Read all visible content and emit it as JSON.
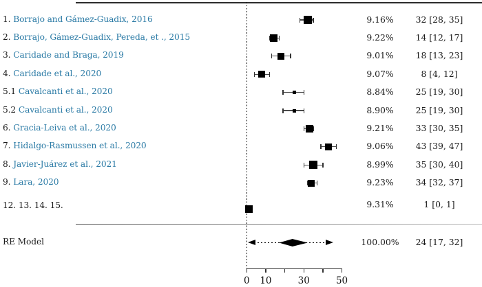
{
  "chart_data": {
    "type": "forest",
    "title": "",
    "description": "Forest plot of study prevalence estimates with 95% CI, weights, and random-effects summary",
    "columns": {
      "weight_header": "",
      "estimate_header": ""
    },
    "rows": [
      {
        "num": "1.",
        "name": "Borrajo and Gámez-Guadix, 2016",
        "weight": "9.16%",
        "est_text": "32 [28, 35]",
        "est": 32,
        "lo": 28,
        "hi": 35,
        "size": 12
      },
      {
        "num": "2.",
        "name": "Borrajo, Gámez-Guadix, Pereda, et ., 2015",
        "weight": "9.22%",
        "est_text": "14 [12, 17]",
        "est": 14,
        "lo": 12,
        "hi": 17,
        "size": 11
      },
      {
        "num": "3.",
        "name": "Caridade and Braga, 2019",
        "weight": "9.01%",
        "est_text": "18 [13, 23]",
        "est": 18,
        "lo": 13,
        "hi": 23,
        "size": 10
      },
      {
        "num": "4.",
        "name": "Caridade et al., 2020",
        "weight": "9.07%",
        "est_text": "8 [4, 12]",
        "est": 8,
        "lo": 4,
        "hi": 12,
        "size": 10
      },
      {
        "num": "5.1",
        "name": "Cavalcanti et al., 2020",
        "weight": "8.84%",
        "est_text": "25 [19, 30]",
        "est": 25,
        "lo": 19,
        "hi": 30,
        "size": 5
      },
      {
        "num": "5.2",
        "name": "Cavalcanti et al., 2020",
        "weight": "8.90%",
        "est_text": "25 [19, 30]",
        "est": 25,
        "lo": 19,
        "hi": 30,
        "size": 5
      },
      {
        "num": "6.",
        "name": "Gracia-Leiva et al., 2020",
        "weight": "9.21%",
        "est_text": "33 [30, 35]",
        "est": 33,
        "lo": 30,
        "hi": 35,
        "size": 11
      },
      {
        "num": "7.",
        "name": "Hidalgo-Rasmussen et al., 2020",
        "weight": "9.06%",
        "est_text": "43 [39, 47]",
        "est": 43,
        "lo": 39,
        "hi": 47,
        "size": 10
      },
      {
        "num": "8.",
        "name": "Javier-Juárez et al., 2021",
        "weight": "8.99%",
        "est_text": "35 [30, 40]",
        "est": 35,
        "lo": 30,
        "hi": 40,
        "size": 12
      },
      {
        "num": "9.",
        "name": "Lara, 2020",
        "weight": "9.23%",
        "est_text": "34 [32, 37]",
        "est": 34,
        "lo": 32,
        "hi": 37,
        "size": 10
      },
      {
        "num": "12. 13. 14. 15.",
        "name": "",
        "weight": "9.31%",
        "est_text": "1 [0, 1]",
        "est": 1,
        "lo": 0,
        "hi": 1,
        "size": 11,
        "special": true
      }
    ],
    "summary": {
      "label": "RE Model",
      "weight": "100.00%",
      "est_text": "24 [17, 32]",
      "est": 24,
      "lo": 17,
      "hi": 32,
      "pi_lo": 0.5,
      "pi_hi": 45.5
    },
    "x_axis": {
      "min": 0,
      "max": 50,
      "ticks": [
        0,
        10,
        20,
        30,
        40,
        50
      ],
      "tick_labels": [
        {
          "v": 0,
          "t": "0"
        },
        {
          "v": 10,
          "t": "10"
        },
        {
          "v": 30,
          "t": "30"
        },
        {
          "v": 50,
          "t": "50"
        }
      ]
    }
  },
  "colors": {
    "study_name": "#2a7aa5",
    "text": "#1a1a1a",
    "marker": "#000000",
    "ci_line": "#4a4a4a",
    "axis": "#333333"
  }
}
